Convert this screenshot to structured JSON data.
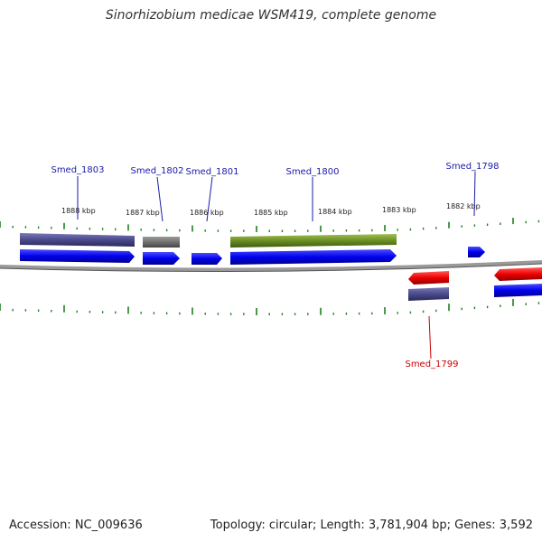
{
  "title": "Sinorhizobium medicae WSM419, complete genome",
  "footer": {
    "accession": "Accession: NC_009636",
    "summary": "Topology: circular; Length: 3,781,904 bp; Genes: 3,592"
  },
  "colors": {
    "forward_gene": "#0000ee",
    "reverse_gene": "#ee0000",
    "feature_navy": "#4a4a8c",
    "feature_gray": "#707070",
    "feature_green": "#6b8e23",
    "tick": "#1f7f1f",
    "backbone": "#888888",
    "label_forward": "#1a1aaa",
    "label_reverse": "#cc0000"
  },
  "ruler": {
    "unit": "kbp",
    "ticks": [
      {
        "label": "1888 kbp"
      },
      {
        "label": "1887 kbp"
      },
      {
        "label": "1886 kbp"
      },
      {
        "label": "1885 kbp"
      },
      {
        "label": "1884 kbp"
      },
      {
        "label": "1883 kbp"
      },
      {
        "label": "1882 kbp"
      }
    ]
  },
  "genes": [
    {
      "name": "Smed_1803",
      "strand": "+"
    },
    {
      "name": "Smed_1802",
      "strand": "+"
    },
    {
      "name": "Smed_1801",
      "strand": "+"
    },
    {
      "name": "Smed_1800",
      "strand": "+"
    },
    {
      "name": "Smed_1799",
      "strand": "-"
    },
    {
      "name": "Smed_1798",
      "strand": "+"
    }
  ]
}
